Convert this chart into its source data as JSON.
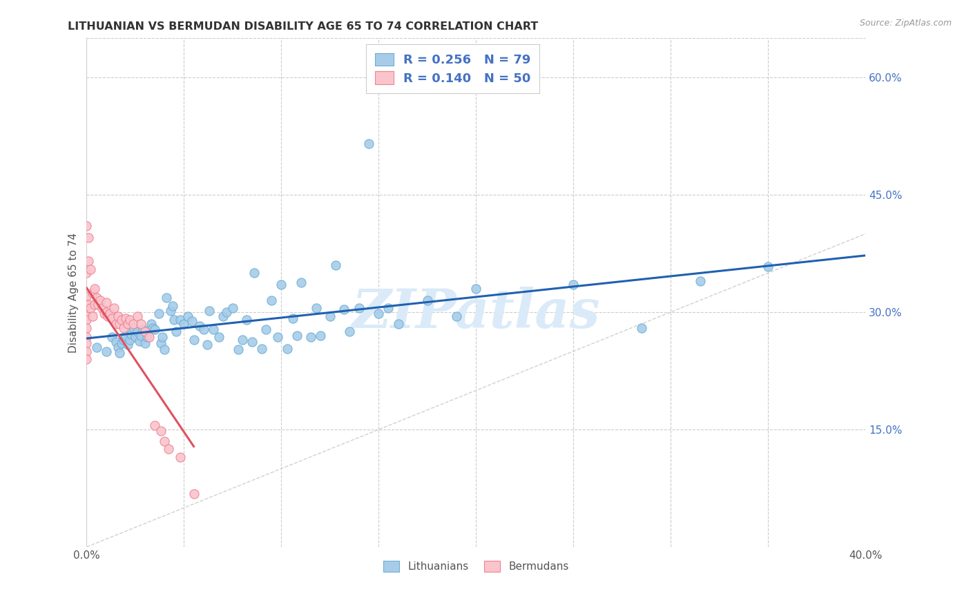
{
  "title": "LITHUANIAN VS BERMUDAN DISABILITY AGE 65 TO 74 CORRELATION CHART",
  "source": "Source: ZipAtlas.com",
  "ylabel": "Disability Age 65 to 74",
  "xlim": [
    0.0,
    0.4
  ],
  "ylim": [
    0.0,
    0.65
  ],
  "yticks_right": [
    0.15,
    0.3,
    0.45,
    0.6
  ],
  "yticklabels_right": [
    "15.0%",
    "30.0%",
    "45.0%",
    "60.0%"
  ],
  "color_blue": "#a8cce8",
  "color_blue_edge": "#6aaed6",
  "color_pink": "#f9c4cc",
  "color_pink_edge": "#f08090",
  "color_blue_line": "#2060b0",
  "color_pink_line": "#e05060",
  "color_diag_line": "#d0d0d0",
  "color_text_blue": "#4472c4",
  "watermark": "ZIPatlas",
  "watermark_color": "#daeaf8",
  "legend_text1": "R = 0.256   N = 79",
  "legend_text2": "R = 0.140   N = 50",
  "lithuanians_x": [
    0.005,
    0.01,
    0.013,
    0.015,
    0.016,
    0.017,
    0.018,
    0.019,
    0.02,
    0.021,
    0.022,
    0.023,
    0.024,
    0.025,
    0.026,
    0.027,
    0.028,
    0.029,
    0.03,
    0.031,
    0.033,
    0.034,
    0.035,
    0.037,
    0.038,
    0.039,
    0.04,
    0.041,
    0.043,
    0.044,
    0.045,
    0.046,
    0.048,
    0.05,
    0.052,
    0.054,
    0.055,
    0.058,
    0.06,
    0.062,
    0.063,
    0.065,
    0.068,
    0.07,
    0.072,
    0.075,
    0.078,
    0.08,
    0.082,
    0.085,
    0.086,
    0.09,
    0.092,
    0.095,
    0.098,
    0.1,
    0.103,
    0.106,
    0.108,
    0.11,
    0.115,
    0.118,
    0.12,
    0.125,
    0.128,
    0.132,
    0.135,
    0.14,
    0.145,
    0.15,
    0.155,
    0.16,
    0.175,
    0.19,
    0.2,
    0.25,
    0.285,
    0.315,
    0.35
  ],
  "lithuanians_y": [
    0.255,
    0.25,
    0.268,
    0.262,
    0.255,
    0.248,
    0.26,
    0.265,
    0.27,
    0.258,
    0.265,
    0.272,
    0.28,
    0.268,
    0.275,
    0.263,
    0.27,
    0.278,
    0.26,
    0.268,
    0.285,
    0.28,
    0.278,
    0.298,
    0.26,
    0.268,
    0.252,
    0.318,
    0.302,
    0.308,
    0.29,
    0.275,
    0.29,
    0.285,
    0.295,
    0.288,
    0.265,
    0.282,
    0.278,
    0.258,
    0.302,
    0.278,
    0.268,
    0.295,
    0.3,
    0.305,
    0.252,
    0.265,
    0.29,
    0.262,
    0.35,
    0.253,
    0.278,
    0.315,
    0.268,
    0.335,
    0.253,
    0.292,
    0.27,
    0.338,
    0.268,
    0.305,
    0.27,
    0.295,
    0.36,
    0.303,
    0.275,
    0.305,
    0.515,
    0.298,
    0.305,
    0.285,
    0.315,
    0.295,
    0.33,
    0.335,
    0.28,
    0.34,
    0.358
  ],
  "bermudans_x": [
    0.0,
    0.0,
    0.0,
    0.0,
    0.0,
    0.0,
    0.0,
    0.0,
    0.0,
    0.0,
    0.0,
    0.001,
    0.001,
    0.001,
    0.002,
    0.002,
    0.003,
    0.003,
    0.004,
    0.004,
    0.005,
    0.006,
    0.007,
    0.008,
    0.009,
    0.01,
    0.01,
    0.011,
    0.012,
    0.013,
    0.014,
    0.015,
    0.016,
    0.017,
    0.018,
    0.019,
    0.02,
    0.021,
    0.022,
    0.024,
    0.026,
    0.028,
    0.03,
    0.032,
    0.035,
    0.038,
    0.04,
    0.042,
    0.048,
    0.055
  ],
  "bermudans_y": [
    0.41,
    0.35,
    0.32,
    0.31,
    0.295,
    0.29,
    0.28,
    0.268,
    0.26,
    0.25,
    0.24,
    0.395,
    0.365,
    0.31,
    0.355,
    0.305,
    0.325,
    0.295,
    0.33,
    0.31,
    0.318,
    0.31,
    0.315,
    0.305,
    0.298,
    0.312,
    0.3,
    0.295,
    0.298,
    0.292,
    0.305,
    0.285,
    0.295,
    0.285,
    0.29,
    0.28,
    0.292,
    0.285,
    0.29,
    0.285,
    0.295,
    0.285,
    0.275,
    0.268,
    0.155,
    0.148,
    0.135,
    0.125,
    0.115,
    0.068
  ]
}
